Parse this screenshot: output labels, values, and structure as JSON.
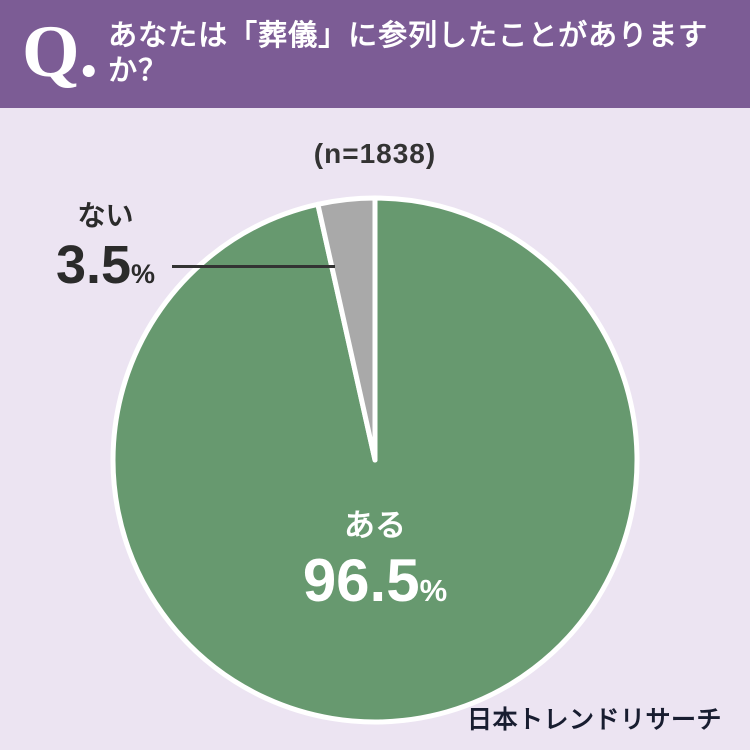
{
  "header": {
    "q_mark": "Q.",
    "title": "あなたは「葬儀」に参列したことがありますか？",
    "bg_color": "#7c5c95",
    "text_color": "#ffffff"
  },
  "chart_data": {
    "type": "pie",
    "sample_label": "(n=1838)",
    "unit": "%",
    "direction": "clockwise",
    "start_angle_deg": 0,
    "legend_position": "none",
    "divider_color": "#ffffff",
    "slices": [
      {
        "label": "ある",
        "value": 96.5,
        "color": "#67996f",
        "label_position": "inside",
        "text_color": "#ffffff"
      },
      {
        "label": "ない",
        "value": 3.5,
        "color": "#a9a9a9",
        "label_position": "callout-left",
        "text_color": "#2b2b2b"
      }
    ]
  },
  "footer": {
    "brand": "日本トレンドリサーチ"
  },
  "colors": {
    "background": "#ece4f2",
    "label_dark": "#333333"
  }
}
